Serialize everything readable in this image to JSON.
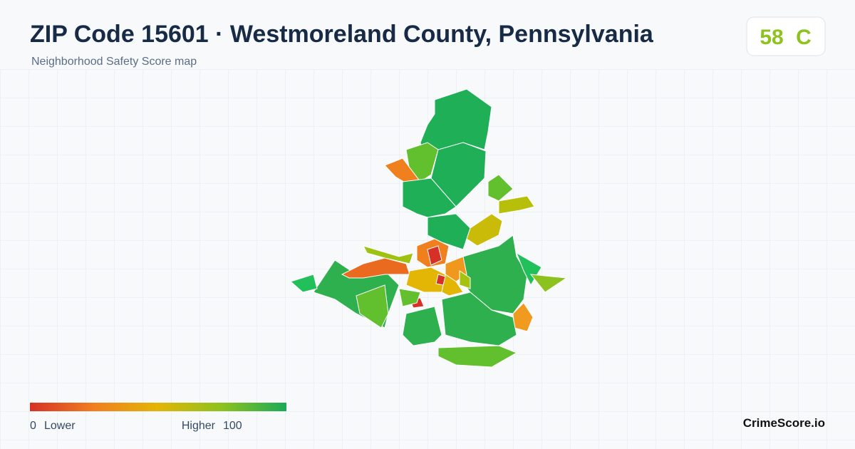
{
  "header": {
    "title": "ZIP Code 15601 · Westmoreland County, Pennsylvania",
    "subtitle": "Neighborhood Safety Score map"
  },
  "score": {
    "value": 58,
    "grade": "C"
  },
  "legend": {
    "min": 0,
    "min_label": "Lower",
    "max_label": "Higher",
    "max": 100
  },
  "footer": {
    "brand": "CrimeScore.io"
  }
}
